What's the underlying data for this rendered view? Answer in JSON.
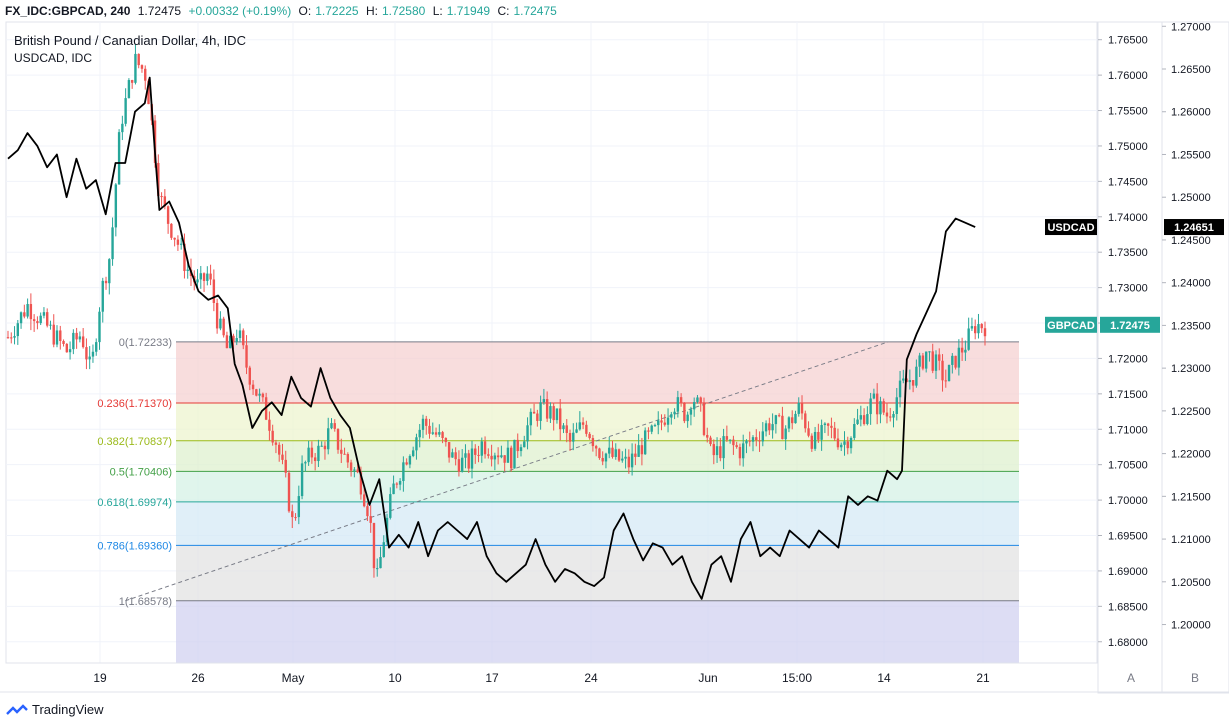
{
  "header": {
    "symbol": "FX_IDC:GBPCAD, 240",
    "last": "1.72475",
    "change": "+0.00332 (+0.19%)",
    "o_label": "O:",
    "o": "1.72225",
    "h_label": "H:",
    "h": "1.72580",
    "l_label": "L:",
    "l": "1.71949",
    "c_label": "C:",
    "c": "1.72475"
  },
  "footer": {
    "brand": "TradingView",
    "scale_a": "A",
    "scale_b": "B"
  },
  "colors": {
    "up": "#26a69a",
    "down": "#ef5350",
    "usdcad_line": "#000000"
  },
  "chart_data": {
    "type": "candlestick-with-line",
    "title": "British Pound / Canadian Dollar, 4h, IDC",
    "subtitle": "USDCAD, IDC",
    "x_tick_labels": [
      "19",
      "26",
      "May",
      "10",
      "17",
      "24",
      "Jun",
      "15:00",
      "14",
      "21"
    ],
    "left_axis": {
      "ticks": [
        "1.76500",
        "1.76000",
        "1.75500",
        "1.75000",
        "1.74500",
        "1.74000",
        "1.73500",
        "1.73000",
        "1.72500",
        "1.72000",
        "1.71500",
        "1.71000",
        "1.70500",
        "1.70000",
        "1.69500",
        "1.69000",
        "1.68500",
        "1.68000"
      ],
      "range": [
        1.677,
        1.7675
      ]
    },
    "right_axis": {
      "ticks": [
        "1.27000",
        "1.26500",
        "1.26000",
        "1.25500",
        "1.25000",
        "1.24500",
        "1.24000",
        "1.23500",
        "1.23000",
        "1.22500",
        "1.22000",
        "1.21500",
        "1.21000",
        "1.20500",
        "1.20000"
      ],
      "range": [
        1.1955,
        1.2705
      ]
    },
    "badges": [
      {
        "name": "USDCAD",
        "value": "1.24651",
        "color": "#000000"
      },
      {
        "name": "GBPCAD",
        "value": "1.72475",
        "color": "#26a69a"
      }
    ],
    "fibonacci": {
      "levels": [
        {
          "label": "0(1.72233)",
          "price": 1.72233,
          "color": "#787b86",
          "fill": "#f5d1d1"
        },
        {
          "label": "0.236(1.71370)",
          "price": 1.7137,
          "color": "#e53935",
          "fill": "#eef4cf"
        },
        {
          "label": "0.382(1.70837)",
          "price": 1.70837,
          "color": "#9bba1a",
          "fill": "#dff0cf"
        },
        {
          "label": "0.5(1.70406)",
          "price": 1.70406,
          "color": "#43a047",
          "fill": "#d6f2e6"
        },
        {
          "label": "0.618(1.69974)",
          "price": 1.69974,
          "color": "#26a69a",
          "fill": "#d6e9f5"
        },
        {
          "label": "0.786(1.69360)",
          "price": 1.6936,
          "color": "#1e88e5",
          "fill": "#e3e3e3"
        },
        {
          "label": "1(1.68578)",
          "price": 1.68578,
          "color": "#787b86",
          "fill": "#d1d1f0"
        }
      ]
    },
    "trendline": {
      "from": {
        "t": 0.12,
        "price": 1.68578
      },
      "to": {
        "t": 0.87,
        "price": 1.72233
      }
    },
    "gbpcad_path": [
      [
        0.0,
        1.723
      ],
      [
        0.02,
        1.7275
      ],
      [
        0.04,
        1.7245
      ],
      [
        0.06,
        1.721
      ],
      [
        0.075,
        1.7235
      ],
      [
        0.085,
        1.718
      ],
      [
        0.095,
        1.729
      ],
      [
        0.105,
        1.735
      ],
      [
        0.115,
        1.753
      ],
      [
        0.13,
        1.762
      ],
      [
        0.14,
        1.7605
      ],
      [
        0.145,
        1.756
      ],
      [
        0.155,
        1.743
      ],
      [
        0.165,
        1.739
      ],
      [
        0.172,
        1.737
      ],
      [
        0.182,
        1.733
      ],
      [
        0.195,
        1.73
      ],
      [
        0.205,
        1.732
      ],
      [
        0.215,
        1.725
      ],
      [
        0.225,
        1.721
      ],
      [
        0.235,
        1.724
      ],
      [
        0.245,
        1.7185
      ],
      [
        0.255,
        1.715
      ],
      [
        0.265,
        1.712
      ],
      [
        0.275,
        1.708
      ],
      [
        0.285,
        1.702
      ],
      [
        0.292,
        1.696
      ],
      [
        0.3,
        1.704
      ],
      [
        0.31,
        1.7065
      ],
      [
        0.32,
        1.707
      ],
      [
        0.33,
        1.71
      ],
      [
        0.345,
        1.706
      ],
      [
        0.36,
        1.703
      ],
      [
        0.37,
        1.698
      ],
      [
        0.377,
        1.688
      ],
      [
        0.385,
        1.695
      ],
      [
        0.395,
        1.702
      ],
      [
        0.41,
        1.707
      ],
      [
        0.425,
        1.711
      ],
      [
        0.44,
        1.709
      ],
      [
        0.455,
        1.706
      ],
      [
        0.47,
        1.705
      ],
      [
        0.485,
        1.708
      ],
      [
        0.5,
        1.707
      ],
      [
        0.515,
        1.706
      ],
      [
        0.53,
        1.71
      ],
      [
        0.545,
        1.713
      ],
      [
        0.56,
        1.712
      ],
      [
        0.575,
        1.708
      ],
      [
        0.59,
        1.711
      ],
      [
        0.605,
        1.707
      ],
      [
        0.62,
        1.706
      ],
      [
        0.635,
        1.705
      ],
      [
        0.65,
        1.708
      ],
      [
        0.665,
        1.71
      ],
      [
        0.68,
        1.714
      ],
      [
        0.695,
        1.712
      ],
      [
        0.7,
        1.715
      ],
      [
        0.71,
        1.712
      ],
      [
        0.72,
        1.706
      ],
      [
        0.735,
        1.708
      ],
      [
        0.75,
        1.707
      ],
      [
        0.765,
        1.709
      ],
      [
        0.78,
        1.711
      ],
      [
        0.795,
        1.71
      ],
      [
        0.81,
        1.713
      ],
      [
        0.825,
        1.708
      ],
      [
        0.84,
        1.71
      ],
      [
        0.855,
        1.708
      ],
      [
        0.87,
        1.711
      ],
      [
        0.885,
        1.714
      ],
      [
        0.9,
        1.712
      ],
      [
        0.915,
        1.716
      ],
      [
        0.93,
        1.718
      ],
      [
        0.94,
        1.721
      ],
      [
        0.95,
        1.719
      ],
      [
        0.96,
        1.717
      ],
      [
        0.97,
        1.72
      ],
      [
        0.98,
        1.722
      ],
      [
        0.99,
        1.7247
      ]
    ],
    "usdcad_path": [
      [
        0.0,
        1.2545
      ],
      [
        0.01,
        1.2555
      ],
      [
        0.02,
        1.2575
      ],
      [
        0.03,
        1.256
      ],
      [
        0.04,
        1.2535
      ],
      [
        0.05,
        1.255
      ],
      [
        0.06,
        1.25
      ],
      [
        0.07,
        1.2545
      ],
      [
        0.08,
        1.251
      ],
      [
        0.09,
        1.252
      ],
      [
        0.1,
        1.248
      ],
      [
        0.11,
        1.254
      ],
      [
        0.12,
        1.254
      ],
      [
        0.13,
        1.26
      ],
      [
        0.14,
        1.261
      ],
      [
        0.145,
        1.264
      ],
      [
        0.15,
        1.256
      ],
      [
        0.155,
        1.2485
      ],
      [
        0.165,
        1.2495
      ],
      [
        0.175,
        1.247
      ],
      [
        0.185,
        1.242
      ],
      [
        0.195,
        1.239
      ],
      [
        0.205,
        1.238
      ],
      [
        0.215,
        1.2385
      ],
      [
        0.225,
        1.237
      ],
      [
        0.232,
        1.2305
      ],
      [
        0.24,
        1.228
      ],
      [
        0.25,
        1.223
      ],
      [
        0.26,
        1.225
      ],
      [
        0.27,
        1.226
      ],
      [
        0.28,
        1.2245
      ],
      [
        0.29,
        1.229
      ],
      [
        0.3,
        1.2265
      ],
      [
        0.31,
        1.2255
      ],
      [
        0.32,
        1.23
      ],
      [
        0.33,
        1.2265
      ],
      [
        0.34,
        1.2245
      ],
      [
        0.35,
        1.223
      ],
      [
        0.36,
        1.218
      ],
      [
        0.37,
        1.214
      ],
      [
        0.38,
        1.217
      ],
      [
        0.39,
        1.209
      ],
      [
        0.4,
        1.2105
      ],
      [
        0.41,
        1.209
      ],
      [
        0.42,
        1.212
      ],
      [
        0.43,
        1.208
      ],
      [
        0.44,
        1.211
      ],
      [
        0.45,
        1.212
      ],
      [
        0.46,
        1.211
      ],
      [
        0.47,
        1.21
      ],
      [
        0.48,
        1.212
      ],
      [
        0.49,
        1.208
      ],
      [
        0.5,
        1.206
      ],
      [
        0.51,
        1.205
      ],
      [
        0.52,
        1.206
      ],
      [
        0.53,
        1.207
      ],
      [
        0.54,
        1.21
      ],
      [
        0.55,
        1.207
      ],
      [
        0.56,
        1.205
      ],
      [
        0.57,
        1.2065
      ],
      [
        0.58,
        1.206
      ],
      [
        0.59,
        1.205
      ],
      [
        0.6,
        1.2045
      ],
      [
        0.61,
        1.2055
      ],
      [
        0.62,
        1.211
      ],
      [
        0.63,
        1.213
      ],
      [
        0.64,
        1.21
      ],
      [
        0.65,
        1.2075
      ],
      [
        0.66,
        1.2095
      ],
      [
        0.67,
        1.209
      ],
      [
        0.68,
        1.207
      ],
      [
        0.69,
        1.208
      ],
      [
        0.7,
        1.205
      ],
      [
        0.71,
        1.203
      ],
      [
        0.72,
        1.207
      ],
      [
        0.73,
        1.208
      ],
      [
        0.74,
        1.205
      ],
      [
        0.75,
        1.21
      ],
      [
        0.76,
        1.212
      ],
      [
        0.77,
        1.208
      ],
      [
        0.78,
        1.209
      ],
      [
        0.79,
        1.208
      ],
      [
        0.8,
        1.211
      ],
      [
        0.81,
        1.21
      ],
      [
        0.82,
        1.209
      ],
      [
        0.83,
        1.211
      ],
      [
        0.84,
        1.21
      ],
      [
        0.85,
        1.209
      ],
      [
        0.86,
        1.215
      ],
      [
        0.87,
        1.214
      ],
      [
        0.88,
        1.215
      ],
      [
        0.89,
        1.2145
      ],
      [
        0.9,
        1.218
      ],
      [
        0.91,
        1.217
      ],
      [
        0.915,
        1.218
      ],
      [
        0.92,
        1.231
      ],
      [
        0.93,
        1.234
      ],
      [
        0.94,
        1.2365
      ],
      [
        0.95,
        1.239
      ],
      [
        0.96,
        1.246
      ],
      [
        0.97,
        1.2475
      ],
      [
        0.98,
        1.247
      ],
      [
        0.99,
        1.2465
      ]
    ]
  }
}
